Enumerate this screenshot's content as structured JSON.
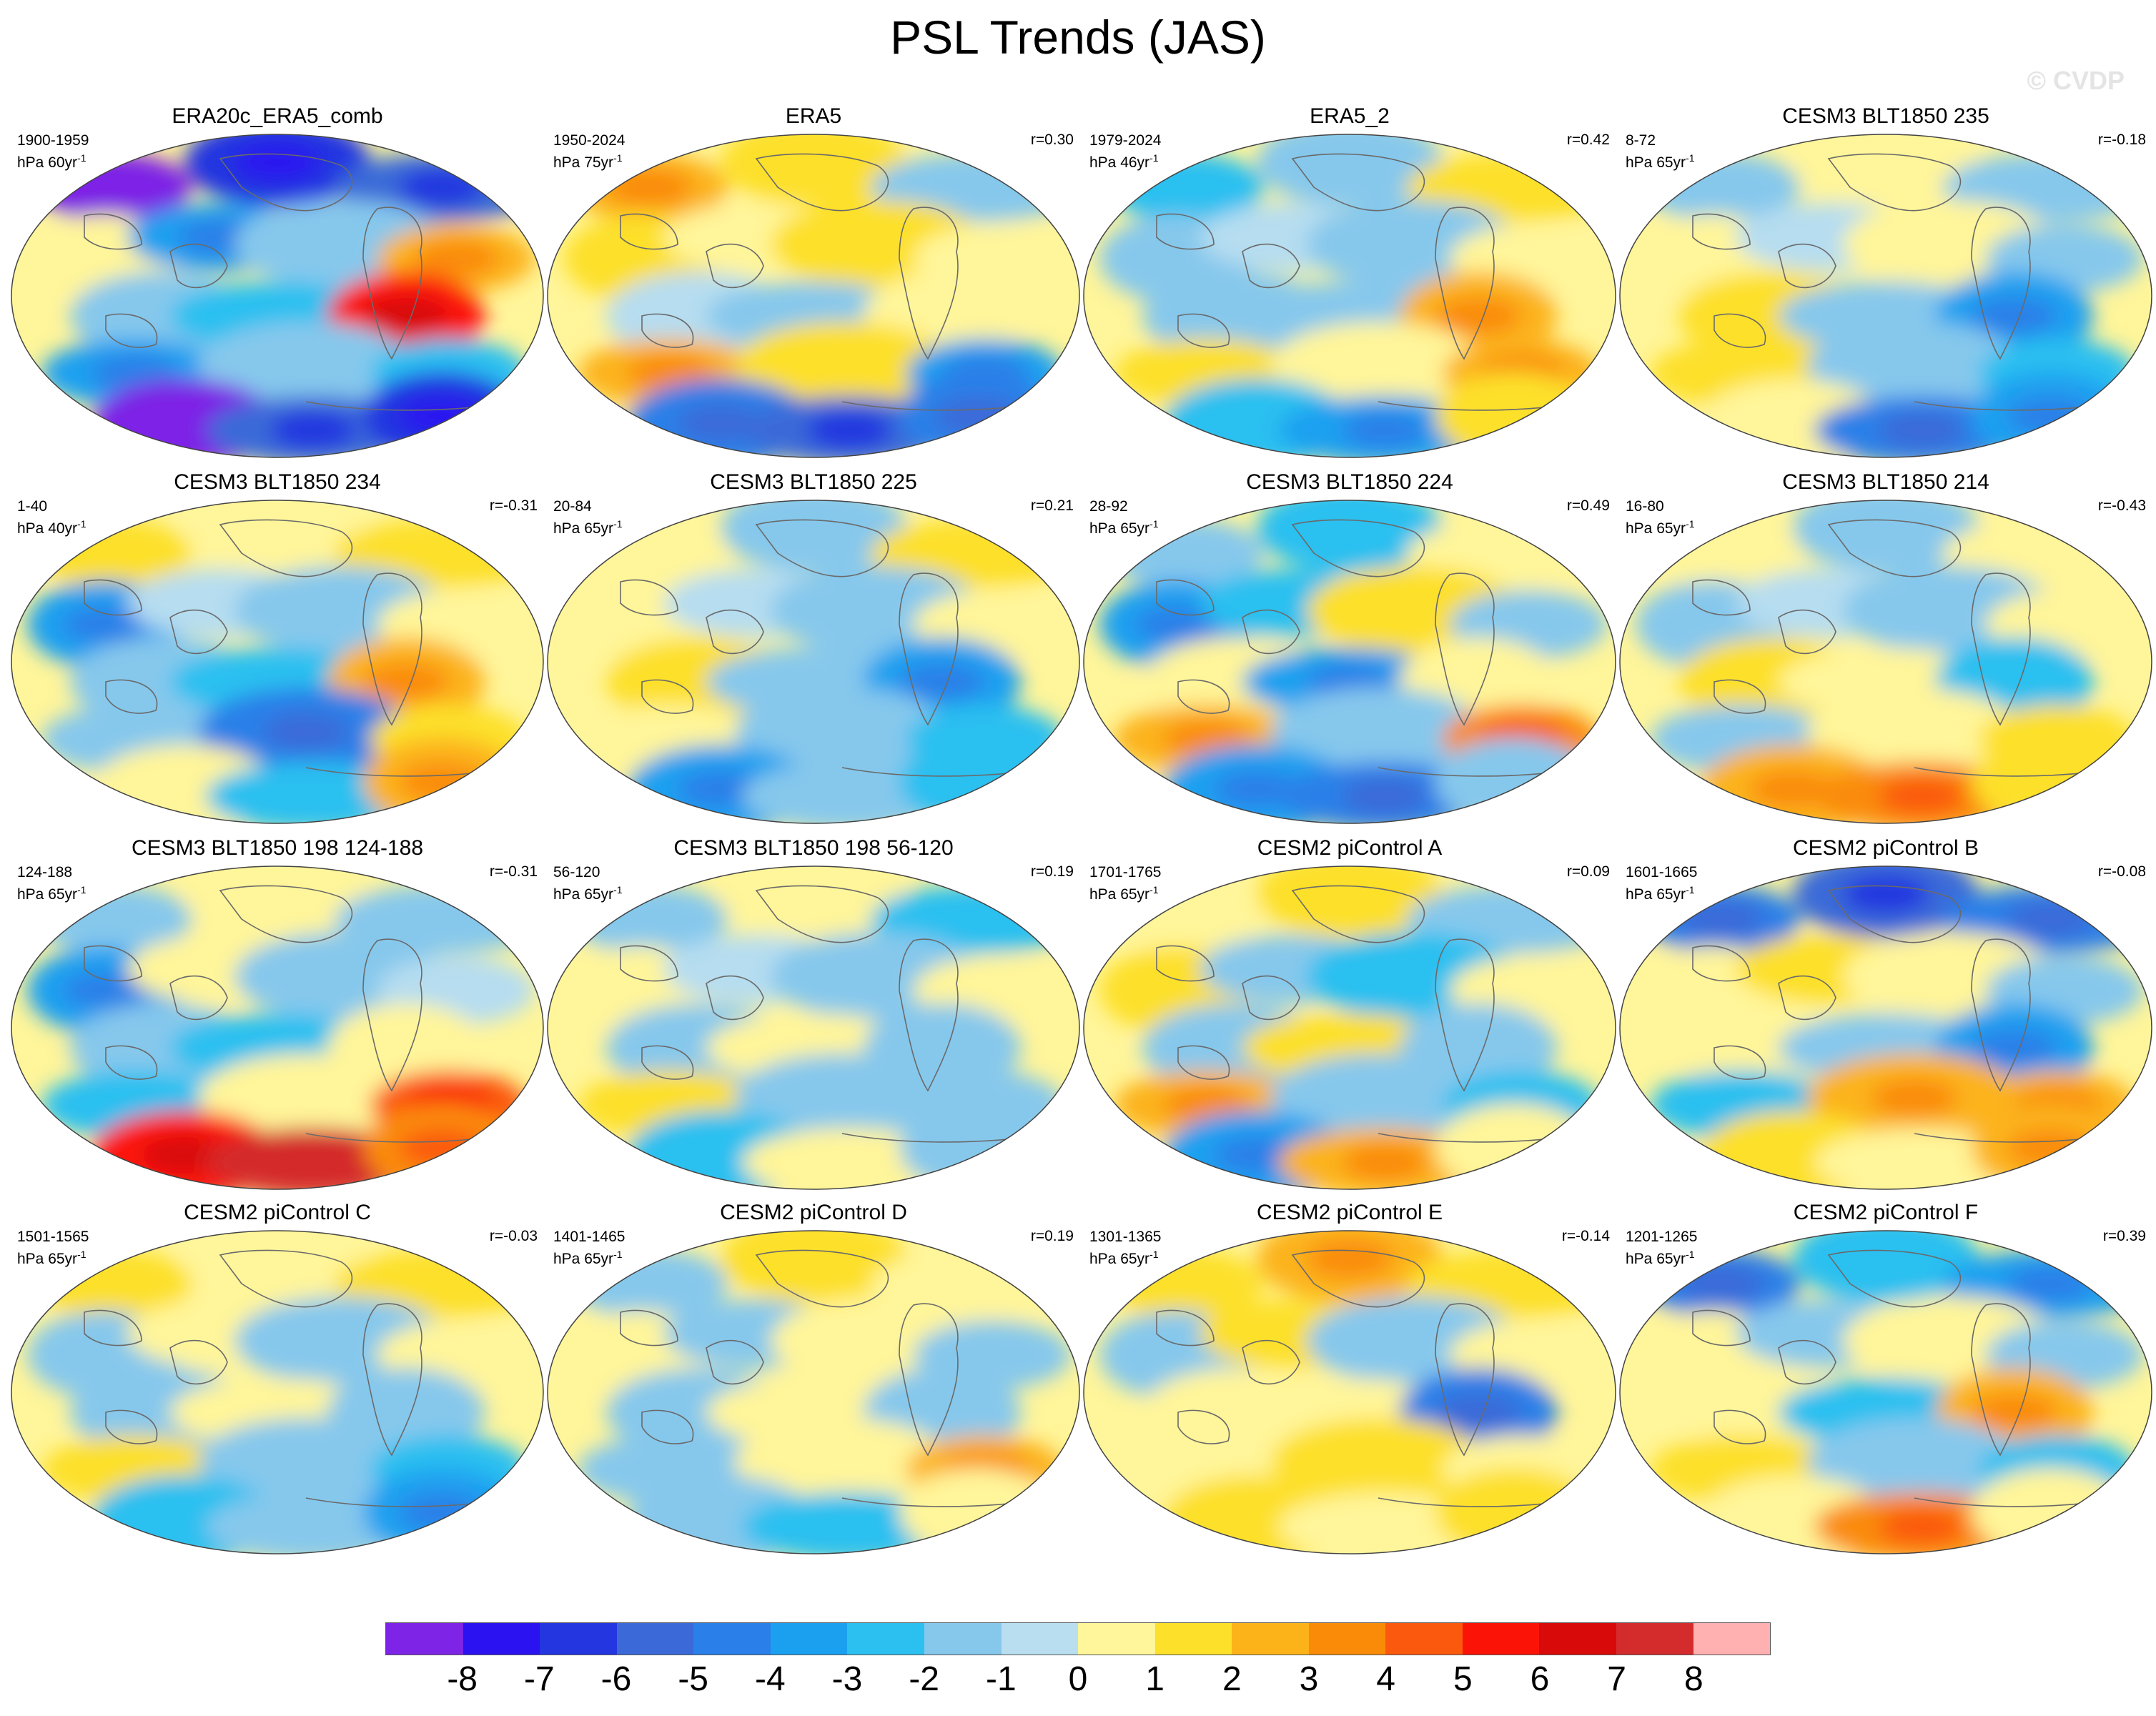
{
  "title": "PSL Trends (JAS)",
  "watermark": "© CVDP",
  "colors": {
    "land_outline": "#6a6a6a",
    "neutral_pos": "#fff59a",
    "neutral_neg": "#b6ddf0"
  },
  "panels": [
    {
      "title": "ERA20c_ERA5_comb",
      "years": "1900-1959",
      "units": "hPa 60yr",
      "units_sup": "-1",
      "corr": "",
      "pattern": [
        -8,
        -6,
        -5,
        1,
        -3,
        -1,
        3,
        -1,
        -2,
        6,
        -3,
        -1,
        -2,
        -8,
        -5,
        -6
      ]
    },
    {
      "title": "ERA5",
      "years": "1950-2024",
      "units": "hPa 75yr",
      "units_sup": "-1",
      "corr": "r=0.30",
      "pattern": [
        3,
        2,
        -1,
        2,
        1,
        2,
        1,
        0,
        -1,
        1,
        3,
        2,
        -3,
        -4,
        -5,
        -4
      ]
    },
    {
      "title": "ERA5_2",
      "years": "1979-2024",
      "units": "hPa 46yr",
      "units_sup": "-1",
      "corr": "r=0.42",
      "pattern": [
        -2,
        -1,
        2,
        -1,
        0,
        -1,
        1,
        -1,
        -1,
        3,
        2,
        1,
        3,
        -2,
        -3,
        2
      ]
    },
    {
      "title": "CESM3 BLT1850 235",
      "years": "8-72",
      "units": "hPa 65yr",
      "units_sup": "-1",
      "corr": "r=-0.18",
      "pattern": [
        -1,
        1,
        -1,
        1,
        0,
        1,
        -1,
        2,
        -1,
        -3,
        2,
        -1,
        -2,
        1,
        -4,
        -3
      ]
    },
    {
      "title": "CESM3 BLT1850 234",
      "years": "1-40",
      "units": "hPa 40yr",
      "units_sup": "-1",
      "corr": "r=-0.31",
      "pattern": [
        2,
        1,
        2,
        -3,
        0,
        -1,
        1,
        -1,
        -2,
        3,
        -1,
        -4,
        2,
        1,
        -2,
        3
      ]
    },
    {
      "title": "CESM3 BLT1850 225",
      "years": "20-84",
      "units": "hPa 65yr",
      "units_sup": "-1",
      "corr": "r=0.21",
      "pattern": [
        1,
        -1,
        2,
        1,
        0,
        -1,
        1,
        2,
        -1,
        -3,
        1,
        -1,
        -2,
        -3,
        -1,
        -2
      ]
    },
    {
      "title": "CESM3 BLT1850 224",
      "years": "28-92",
      "units": "hPa 65yr",
      "units_sup": "-1",
      "corr": "r=0.49",
      "pattern": [
        -1,
        -2,
        1,
        -3,
        -2,
        2,
        -1,
        1,
        -3,
        1,
        3,
        -1,
        4,
        -3,
        -4,
        -1
      ]
    },
    {
      "title": "CESM3 BLT1850 214",
      "years": "16-80",
      "units": "hPa 65yr",
      "units_sup": "-1",
      "corr": "r=-0.43",
      "pattern": [
        1,
        -1,
        1,
        -1,
        0,
        -1,
        1,
        2,
        1,
        -2,
        -1,
        1,
        2,
        3,
        4,
        2
      ]
    },
    {
      "title": "CESM3 BLT1850 198 124-188",
      "years": "124-188",
      "units": "hPa 65yr",
      "units_sup": "-1",
      "corr": "r=-0.31",
      "pattern": [
        -1,
        1,
        -1,
        -3,
        1,
        -1,
        0,
        -1,
        -2,
        1,
        -2,
        1,
        5,
        6,
        8,
        4
      ]
    },
    {
      "title": "CESM3 BLT1850 198 56-120",
      "years": "56-120",
      "units": "hPa 65yr",
      "units_sup": "-1",
      "corr": "r=0.19",
      "pattern": [
        -1,
        1,
        -2,
        1,
        0,
        -1,
        1,
        -1,
        1,
        -1,
        2,
        -1,
        -1,
        -2,
        1,
        -1
      ]
    },
    {
      "title": "CESM2 piControl A",
      "years": "1701-1765",
      "units": "hPa 65yr",
      "units_sup": "-1",
      "corr": "r=0.09",
      "pattern": [
        1,
        2,
        -1,
        2,
        -1,
        -2,
        1,
        -1,
        2,
        -1,
        3,
        -1,
        -2,
        -3,
        3,
        1
      ]
    },
    {
      "title": "CESM2 piControl B",
      "years": "1601-1665",
      "units": "hPa 65yr",
      "units_sup": "-1",
      "corr": "r=-0.08",
      "pattern": [
        -4,
        -5,
        -4,
        1,
        2,
        1,
        -1,
        1,
        -1,
        -3,
        -2,
        3,
        3,
        2,
        1,
        3
      ]
    },
    {
      "title": "CESM2 piControl C",
      "years": "1501-1565",
      "units": "hPa 65yr",
      "units_sup": "-1",
      "corr": "r=-0.03",
      "pattern": [
        2,
        1,
        2,
        -1,
        1,
        -1,
        1,
        -1,
        1,
        -1,
        2,
        -1,
        -2,
        -2,
        -1,
        -3
      ]
    },
    {
      "title": "CESM2 piControl D",
      "years": "1401-1465",
      "units": "hPa 65yr",
      "units_sup": "-1",
      "corr": "r=0.19",
      "pattern": [
        -1,
        2,
        1,
        1,
        -1,
        1,
        -1,
        -1,
        1,
        -1,
        -1,
        1,
        3,
        -1,
        -2,
        1
      ]
    },
    {
      "title": "CESM2 piControl E",
      "years": "1301-1365",
      "units": "hPa 65yr",
      "units_sup": "-1",
      "corr": "r=-0.14",
      "pattern": [
        2,
        3,
        2,
        -1,
        2,
        -1,
        1,
        1,
        1,
        -4,
        1,
        2,
        1,
        2,
        1,
        2
      ]
    },
    {
      "title": "CESM2 piControl F",
      "years": "1201-1265",
      "units": "hPa 65yr",
      "units_sup": "-1",
      "corr": "r=0.39",
      "pattern": [
        -4,
        -2,
        -3,
        1,
        -1,
        1,
        -1,
        1,
        -2,
        3,
        2,
        -1,
        -2,
        1,
        4,
        1
      ]
    }
  ],
  "colorbar": {
    "labels": [
      "-8",
      "-7",
      "-6",
      "-5",
      "-4",
      "-3",
      "-2",
      "-1",
      "0",
      "1",
      "2",
      "3",
      "4",
      "5",
      "6",
      "7",
      "8"
    ],
    "colors": [
      "#7d24e6",
      "#2a13f0",
      "#2436e0",
      "#3b6ad8",
      "#2a80e8",
      "#1ba0f0",
      "#2cc0f0",
      "#86c8ec",
      "#b8def0",
      "#fff59a",
      "#fde02a",
      "#fcb31a",
      "#fa8b08",
      "#fb5a0e",
      "#fc1308",
      "#d80a0a",
      "#d42c2c",
      "#ffb0b0"
    ]
  }
}
